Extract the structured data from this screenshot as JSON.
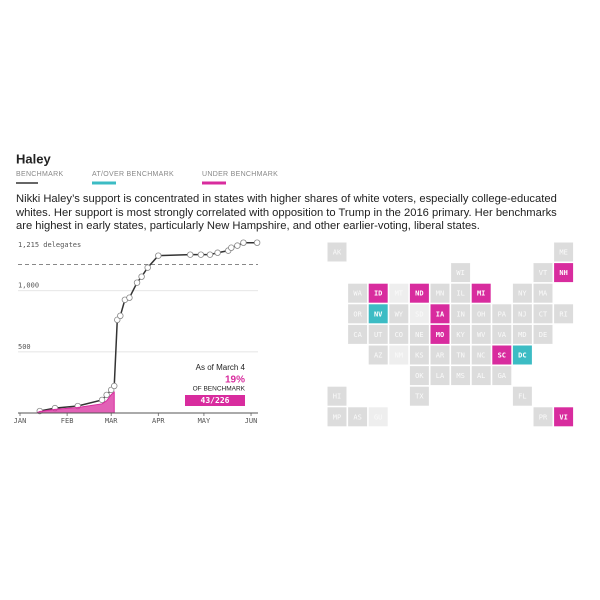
{
  "chart_data": [
    {
      "type": "line",
      "title": "Haley",
      "description": "Nikki Haley’s support is concentrated in states with higher shares of white voters, especially college-educated whites. Her support is most strongly correlated with opposition to Trump in the 2016 primary. Her benchmarks are highest in early states, particularly New Hampshire, and other earlier-voting, liberal states.",
      "series": [
        {
          "name": "BENCHMARK",
          "color": "#333333",
          "kind": "line",
          "x": [
            14,
            24,
            39,
            55,
            58,
            61,
            63,
            65,
            67,
            70,
            73,
            78,
            81,
            85,
            92,
            113,
            120,
            126,
            131,
            138,
            140,
            144,
            148,
            157
          ],
          "values": [
            16,
            40,
            57,
            107,
            148,
            189,
            221,
            762,
            795,
            926,
            943,
            1066,
            1115,
            1189,
            1287,
            1295,
            1295,
            1295,
            1311,
            1328,
            1352,
            1369,
            1393,
            1393
          ]
        },
        {
          "name": "AT/OVER BENCHMARK",
          "color": "#3cbcc4",
          "kind": "area",
          "x": [],
          "values": []
        },
        {
          "name": "UNDER BENCHMARK",
          "color": "#d82c9e",
          "kind": "area",
          "x": [
            12,
            14,
            24,
            39,
            55,
            58,
            61,
            63
          ],
          "values": [
            0,
            12,
            30,
            45,
            75,
            100,
            150,
            170
          ]
        }
      ],
      "xlim": [
        1,
        160
      ],
      "xticks": [
        {
          "value": 1,
          "label": "JAN"
        },
        {
          "value": 32,
          "label": "FEB"
        },
        {
          "value": 61,
          "label": "MAR"
        },
        {
          "value": 92,
          "label": "APR"
        },
        {
          "value": 122,
          "label": "MAY"
        },
        {
          "value": 153,
          "label": "JUN"
        }
      ],
      "ylim": [
        0,
        1415
      ],
      "yticks": [
        500,
        {
          "value": 1000,
          "label": "1,000"
        },
        {
          "value": 1215,
          "label": "1,215 delegates",
          "style": "dashed"
        }
      ],
      "annotation": {
        "date": "As of March 4",
        "percent": "19%",
        "caption": "OF BENCHMARK",
        "ratio": "43/226"
      }
    },
    {
      "type": "tilemap",
      "status_colors": {
        "under": "#d82c9e",
        "over": "#3cbcc4",
        "pending": "#dcdcdc",
        "none": "#eeeeee"
      },
      "rows": [
        [
          {
            "label": "AK",
            "status": "pending"
          },
          null,
          null,
          null,
          null,
          null,
          null,
          null,
          null,
          null,
          null,
          {
            "label": "ME",
            "status": "pending"
          }
        ],
        [
          null,
          null,
          null,
          null,
          null,
          null,
          {
            "label": "WI",
            "status": "pending"
          },
          null,
          null,
          null,
          {
            "label": "VT",
            "status": "pending"
          },
          {
            "label": "NH",
            "status": "under"
          }
        ],
        [
          null,
          {
            "label": "WA",
            "status": "pending"
          },
          {
            "label": "ID",
            "status": "under"
          },
          {
            "label": "MT",
            "status": "none"
          },
          {
            "label": "ND",
            "status": "under"
          },
          {
            "label": "MN",
            "status": "pending"
          },
          {
            "label": "IL",
            "status": "pending"
          },
          {
            "label": "MI",
            "status": "under"
          },
          null,
          {
            "label": "NY",
            "status": "pending"
          },
          {
            "label": "MA",
            "status": "pending"
          },
          null
        ],
        [
          null,
          {
            "label": "OR",
            "status": "pending"
          },
          {
            "label": "NV",
            "status": "over"
          },
          {
            "label": "WY",
            "status": "pending"
          },
          {
            "label": "SD",
            "status": "none"
          },
          {
            "label": "IA",
            "status": "under"
          },
          {
            "label": "IN",
            "status": "pending"
          },
          {
            "label": "OH",
            "status": "pending"
          },
          {
            "label": "PA",
            "status": "pending"
          },
          {
            "label": "NJ",
            "status": "pending"
          },
          {
            "label": "CT",
            "status": "pending"
          },
          {
            "label": "RI",
            "status": "pending"
          }
        ],
        [
          null,
          {
            "label": "CA",
            "status": "pending"
          },
          {
            "label": "UT",
            "status": "pending"
          },
          {
            "label": "CO",
            "status": "pending"
          },
          {
            "label": "NE",
            "status": "pending"
          },
          {
            "label": "MO",
            "status": "under"
          },
          {
            "label": "KY",
            "status": "pending"
          },
          {
            "label": "WV",
            "status": "pending"
          },
          {
            "label": "VA",
            "status": "pending"
          },
          {
            "label": "MD",
            "status": "pending"
          },
          {
            "label": "DE",
            "status": "pending"
          },
          null
        ],
        [
          null,
          null,
          {
            "label": "AZ",
            "status": "pending"
          },
          {
            "label": "NM",
            "status": "none"
          },
          {
            "label": "KS",
            "status": "pending"
          },
          {
            "label": "AR",
            "status": "pending"
          },
          {
            "label": "TN",
            "status": "pending"
          },
          {
            "label": "NC",
            "status": "pending"
          },
          {
            "label": "SC",
            "status": "under"
          },
          {
            "label": "DC",
            "status": "over"
          },
          null,
          null
        ],
        [
          null,
          null,
          null,
          null,
          {
            "label": "OK",
            "status": "pending"
          },
          {
            "label": "LA",
            "status": "pending"
          },
          {
            "label": "MS",
            "status": "pending"
          },
          {
            "label": "AL",
            "status": "pending"
          },
          {
            "label": "GA",
            "status": "pending"
          },
          null,
          null,
          null
        ],
        [
          {
            "label": "HI",
            "status": "pending"
          },
          null,
          null,
          null,
          {
            "label": "TX",
            "status": "pending"
          },
          null,
          null,
          null,
          null,
          {
            "label": "FL",
            "status": "pending"
          },
          null,
          null
        ],
        [
          {
            "label": "MP",
            "status": "pending"
          },
          {
            "label": "AS",
            "status": "pending"
          },
          {
            "label": "GU",
            "status": "none"
          },
          null,
          null,
          null,
          null,
          null,
          null,
          null,
          {
            "label": "PR",
            "status": "pending"
          },
          {
            "label": "VI",
            "status": "under"
          }
        ]
      ]
    }
  ]
}
